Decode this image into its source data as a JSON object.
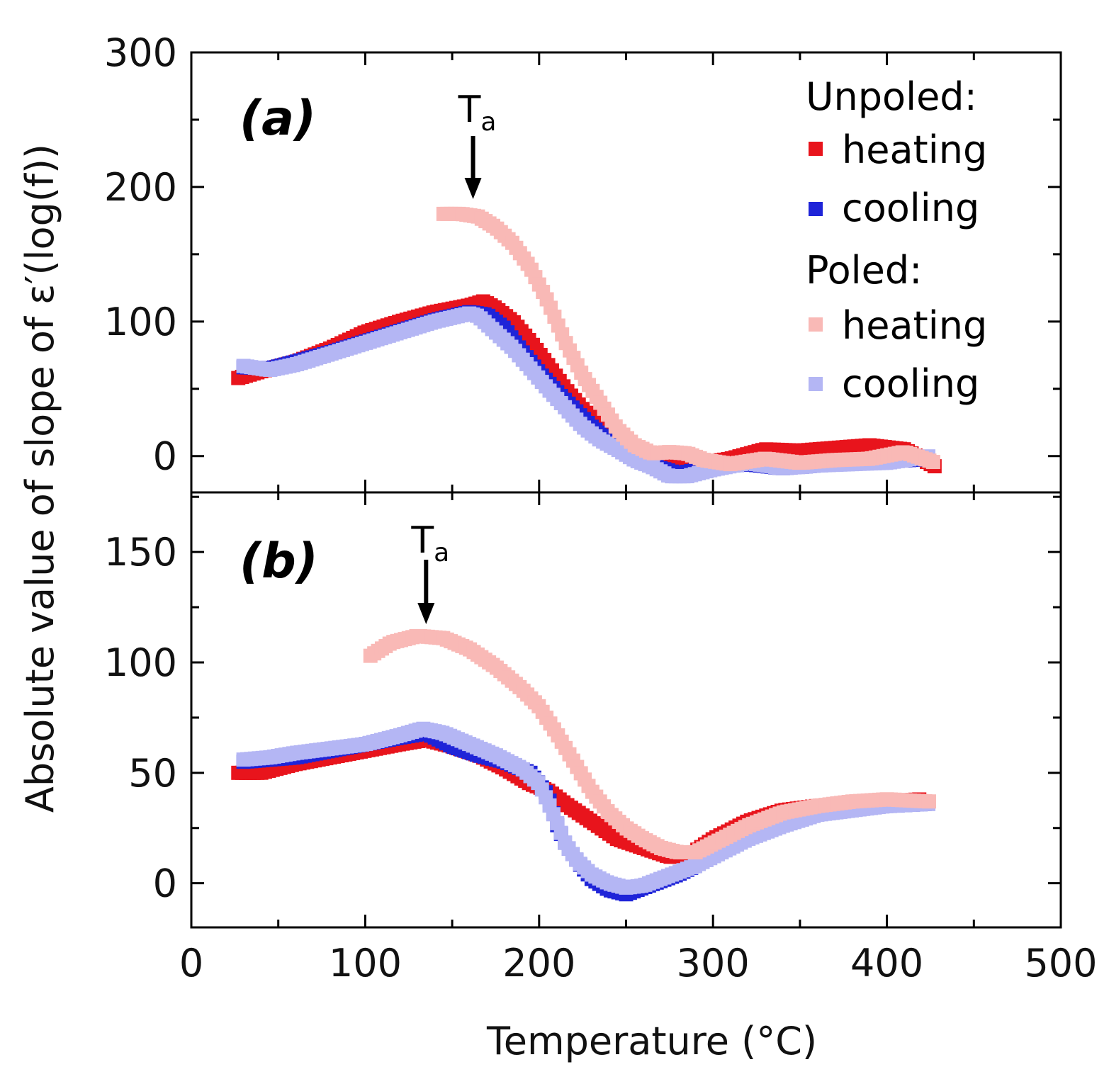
{
  "chart_data": {
    "type": "scatter",
    "xlabel": "Temperature (°C)",
    "ylabel": "Absolute value of slope of ε′(log(f))",
    "xlim": [
      0,
      500
    ],
    "x_ticks": [
      "0",
      "100",
      "200",
      "300",
      "400",
      "500"
    ],
    "legend": {
      "position": "top-right",
      "groups": [
        {
          "title": "Unpoled:",
          "entries": [
            {
              "label": "heating",
              "color": "#e8141c"
            },
            {
              "label": "cooling",
              "color": "#1f24d8"
            }
          ]
        },
        {
          "title": "Poled:",
          "entries": [
            {
              "label": "heating",
              "color": "#f9b9b6"
            },
            {
              "label": "cooling",
              "color": "#b4b6f4"
            }
          ]
        }
      ]
    },
    "panels": [
      {
        "label": "(a)",
        "ylim": [
          -27,
          300
        ],
        "y_ticks": [
          "0",
          "100",
          "200",
          "300"
        ],
        "annotation": {
          "text": "T",
          "sub": "a",
          "x": 162
        },
        "series": [
          {
            "name": "Unpoled heating",
            "color": "#e8141c",
            "x": [
              27,
              40,
              60,
              80,
              100,
              120,
              140,
              160,
              168,
              175,
              185,
              195,
              205,
              215,
              225,
              235,
              245,
              255,
              265,
              275,
              290,
              310,
              330,
              350,
              370,
              390,
              410,
              428
            ],
            "y": [
              58,
              63,
              70,
              80,
              92,
              100,
              107,
              112,
              115,
              110,
              100,
              85,
              68,
              50,
              35,
              22,
              10,
              0,
              -5,
              -7,
              -6,
              -2,
              5,
              4,
              6,
              8,
              5,
              -8
            ]
          },
          {
            "name": "Unpoled cooling",
            "color": "#1f24d8",
            "x": [
              30,
              45,
              60,
              80,
              100,
              120,
              140,
              160,
              170,
              180,
              190,
              200,
              210,
              220,
              230,
              240,
              250,
              260,
              270,
              280,
              300,
              320,
              340,
              360,
              380,
              400,
              425
            ],
            "y": [
              66,
              65,
              70,
              77,
              85,
              93,
              101,
              107,
              105,
              95,
              78,
              62,
              48,
              35,
              22,
              12,
              3,
              -4,
              -9,
              -13,
              -8,
              -6,
              -9,
              -7,
              -5,
              -4,
              -2
            ]
          },
          {
            "name": "Poled heating",
            "color": "#f9b9b6",
            "x": [
              145,
              155,
              165,
              175,
              185,
              195,
              205,
              215,
              225,
              235,
              245,
              255,
              265,
              275,
              285,
              295,
              310,
              330,
              350,
              370,
              390,
              410,
              428
            ],
            "y": [
              180,
              180,
              178,
              170,
              158,
              140,
              115,
              85,
              60,
              40,
              20,
              8,
              2,
              3,
              2,
              -3,
              -6,
              -2,
              -5,
              -3,
              -2,
              3,
              -5
            ]
          },
          {
            "name": "Poled cooling",
            "color": "#b4b6f4",
            "x": [
              30,
              45,
              60,
              80,
              100,
              120,
              140,
              160,
              165,
              175,
              185,
              195,
              205,
              215,
              225,
              235,
              245,
              255,
              265,
              275,
              285,
              300,
              320,
              340,
              360,
              380,
              400,
              425
            ],
            "y": [
              67,
              64,
              68,
              76,
              84,
              92,
              100,
              106,
              104,
              92,
              80,
              65,
              50,
              36,
              22,
              12,
              5,
              -3,
              -8,
              -15,
              -15,
              -10,
              -5,
              -9,
              -7,
              -6,
              -5,
              0
            ]
          }
        ]
      },
      {
        "label": "(b)",
        "ylim": [
          -20,
          177
        ],
        "y_ticks": [
          "0",
          "50",
          "100",
          "150"
        ],
        "annotation": {
          "text": "T",
          "sub": "a",
          "x": 135
        },
        "series": [
          {
            "name": "Unpoled heating",
            "color": "#e8141c",
            "x": [
              27,
              40,
              60,
              80,
              100,
              120,
              135,
              150,
              165,
              180,
              195,
              205,
              215,
              230,
              245,
              260,
              275,
              285,
              300,
              320,
              340,
              360,
              380,
              400,
              420
            ],
            "y": [
              50,
              50,
              54,
              57,
              60,
              63,
              65,
              62,
              58,
              52,
              45,
              42,
              36,
              28,
              20,
              16,
              12,
              12,
              20,
              28,
              33,
              35,
              36,
              37,
              38
            ]
          },
          {
            "name": "Unpoled cooling",
            "color": "#1f24d8",
            "x": [
              30,
              45,
              60,
              80,
              100,
              120,
              135,
              150,
              165,
              180,
              195,
              205,
              210,
              215,
              222,
              230,
              240,
              250,
              260,
              270,
              280,
              290,
              300,
              320,
              340,
              360,
              380,
              400,
              425
            ],
            "y": [
              55,
              56,
              57,
              60,
              63,
              66,
              68,
              62,
              58,
              55,
              50,
              40,
              27,
              18,
              10,
              2,
              -3,
              -5,
              -2,
              1,
              4,
              8,
              15,
              22,
              28,
              32,
              34,
              35,
              36
            ]
          },
          {
            "name": "Poled heating",
            "color": "#f9b9b6",
            "x": [
              103,
              115,
              130,
              145,
              160,
              175,
              190,
              200,
              210,
              220,
              230,
              240,
              250,
              260,
              270,
              280,
              290,
              300,
              320,
              340,
              360,
              380,
              400,
              425
            ],
            "y": [
              103,
              109,
              112,
              111,
              106,
              98,
              88,
              80,
              68,
              55,
              42,
              32,
              25,
              20,
              16,
              14,
              14,
              18,
              26,
              32,
              35,
              37,
              38,
              37
            ]
          },
          {
            "name": "Poled cooling",
            "color": "#b4b6f4",
            "x": [
              30,
              45,
              60,
              80,
              100,
              120,
              133,
              145,
              160,
              175,
              190,
              200,
              205,
              210,
              215,
              222,
              230,
              240,
              250,
              260,
              270,
              280,
              290,
              300,
              320,
              340,
              360,
              380,
              400,
              425
            ],
            "y": [
              56,
              57,
              59,
              61,
              63,
              67,
              70,
              68,
              63,
              58,
              52,
              45,
              37,
              28,
              18,
              10,
              4,
              0,
              -2,
              -1,
              2,
              5,
              8,
              12,
              20,
              26,
              31,
              33,
              35,
              36
            ]
          }
        ]
      }
    ]
  }
}
